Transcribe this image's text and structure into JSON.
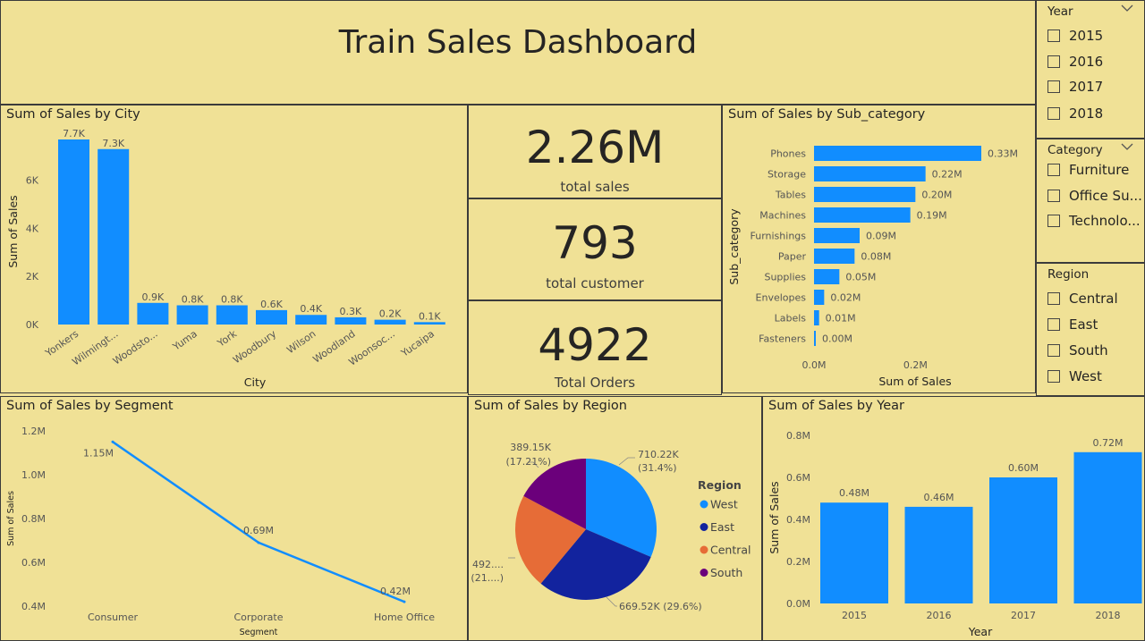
{
  "title": "Train Sales Dashboard",
  "kpis": {
    "total_sales": {
      "value": "2.26M",
      "label": "total sales"
    },
    "total_customer": {
      "value": "793",
      "label": "total customer"
    },
    "total_orders": {
      "value": "4922",
      "label": "Total Orders"
    }
  },
  "slicers": {
    "year": {
      "title": "Year",
      "options": [
        "2015",
        "2016",
        "2017",
        "2018"
      ]
    },
    "category": {
      "title": "Category",
      "options": [
        "Furniture",
        "Office Su...",
        "Technolo..."
      ]
    },
    "region": {
      "title": "Region",
      "options": [
        "Central",
        "East",
        "South",
        "West"
      ]
    }
  },
  "colors": {
    "bar": "#118DFF",
    "background": "#F0E196",
    "west": "#118DFF",
    "east": "#12239E",
    "central": "#E66C37",
    "south": "#6B007B"
  },
  "icons": {
    "dropdown": "chevron-down-icon"
  },
  "chart_data": [
    {
      "id": "city",
      "type": "bar",
      "title": "Sum of Sales by City",
      "xlabel": "City",
      "ylabel": "Sum of Sales",
      "categories": [
        "Yonkers",
        "Wilmingt...",
        "Woodsto...",
        "Yuma",
        "York",
        "Woodbury",
        "Wilson",
        "Woodland",
        "Woonsoc...",
        "Yucaipa"
      ],
      "values": [
        7700,
        7300,
        900,
        800,
        800,
        600,
        400,
        300,
        200,
        100
      ],
      "data_labels": [
        "7.7K",
        "7.3K",
        "0.9K",
        "0.8K",
        "0.8K",
        "0.6K",
        "0.4K",
        "0.3K",
        "0.2K",
        "0.1K"
      ],
      "yticks": [
        0,
        2000,
        4000,
        6000
      ],
      "ytick_labels": [
        "0K",
        "2K",
        "4K",
        "6K"
      ],
      "ylim": [
        0,
        7700
      ]
    },
    {
      "id": "subcategory",
      "type": "bar",
      "orientation": "horizontal",
      "title": "Sum of Sales by Sub_category",
      "xlabel": "Sum of Sales",
      "ylabel": "Sub_category",
      "categories": [
        "Phones",
        "Storage",
        "Tables",
        "Machines",
        "Furnishings",
        "Paper",
        "Supplies",
        "Envelopes",
        "Labels",
        "Fasteners"
      ],
      "values": [
        0.33,
        0.22,
        0.2,
        0.19,
        0.09,
        0.08,
        0.05,
        0.02,
        0.01,
        0.0
      ],
      "data_labels": [
        "0.33M",
        "0.22M",
        "0.20M",
        "0.19M",
        "0.09M",
        "0.08M",
        "0.05M",
        "0.02M",
        "0.01M",
        "0.00M"
      ],
      "xticks": [
        0,
        0.2
      ],
      "xtick_labels": [
        "0.0M",
        "0.2M"
      ],
      "xlim": [
        0,
        0.33
      ]
    },
    {
      "id": "segment",
      "type": "line",
      "title": "Sum of Sales by Segment",
      "xlabel": "Segment",
      "ylabel": "Sum of Sales",
      "categories": [
        "Consumer",
        "Corporate",
        "Home Office"
      ],
      "values": [
        1.15,
        0.69,
        0.42
      ],
      "data_labels": [
        "1.15M",
        "0.69M",
        "0.42M"
      ],
      "yticks": [
        0.4,
        0.6,
        0.8,
        1.0,
        1.2
      ],
      "ytick_labels": [
        "0.4M",
        "0.6M",
        "0.8M",
        "1.0M",
        "1.2M"
      ],
      "ylim": [
        0.4,
        1.2
      ]
    },
    {
      "id": "region",
      "type": "pie",
      "title": "Sum of Sales by Region",
      "legend_title": "Region",
      "legend_position": "right",
      "slices": [
        {
          "name": "West",
          "value": 710.22,
          "label1": "710.22K",
          "label2": "(31.4%)"
        },
        {
          "name": "East",
          "value": 669.52,
          "label1": "669.52K (29.6%)",
          "label2": ""
        },
        {
          "name": "Central",
          "value": 492.0,
          "label1": "492....",
          "label2": "(21....)"
        },
        {
          "name": "South",
          "value": 389.15,
          "label1": "389.15K",
          "label2": "(17.21%)"
        }
      ]
    },
    {
      "id": "year",
      "type": "bar",
      "title": "Sum of Sales by Year",
      "xlabel": "Year",
      "ylabel": "Sum of Sales",
      "categories": [
        "2015",
        "2016",
        "2017",
        "2018"
      ],
      "values": [
        0.48,
        0.46,
        0.6,
        0.72
      ],
      "data_labels": [
        "0.48M",
        "0.46M",
        "0.60M",
        "0.72M"
      ],
      "yticks": [
        0,
        0.2,
        0.4,
        0.6,
        0.8
      ],
      "ytick_labels": [
        "0.0M",
        "0.2M",
        "0.4M",
        "0.6M",
        "0.8M"
      ],
      "ylim": [
        0,
        0.8
      ]
    }
  ]
}
